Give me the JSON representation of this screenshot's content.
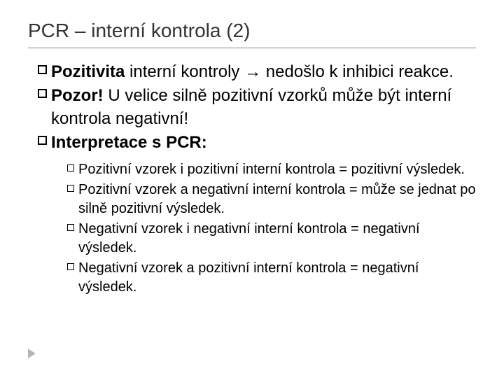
{
  "title": "PCR – interní kontrola (2)",
  "level1": [
    {
      "prefix": "Pozitivita",
      "rest": " interní kontroly → nedošlo k inhibici reakce."
    },
    {
      "prefix": "Pozor!",
      "rest": " U velice silně pozitivní vzorků může být interní kontrola negativní!"
    },
    {
      "prefix": "Interpretace s PCR:",
      "rest": ""
    }
  ],
  "level2": [
    "Pozitivní vzorek i pozitivní interní kontrola = pozitivní výsledek.",
    "Pozitivní vzorek a negativní interní kontrola = může se jednat po silně pozitivní výsledek.",
    "Negativní vzorek i negativní interní kontrola = negativní výsledek.",
    "Negativní vzorek a pozitivní interní kontrola = negativní výsledek."
  ],
  "style": {
    "background_color": "#ffffff",
    "text_color": "#000000",
    "title_color": "#333333",
    "divider_color": "#888888",
    "triangle_color": "#b6b6b6",
    "title_fontsize": 28,
    "level1_fontsize": 24,
    "level2_fontsize": 20,
    "bullet_border_color": "#000000"
  }
}
